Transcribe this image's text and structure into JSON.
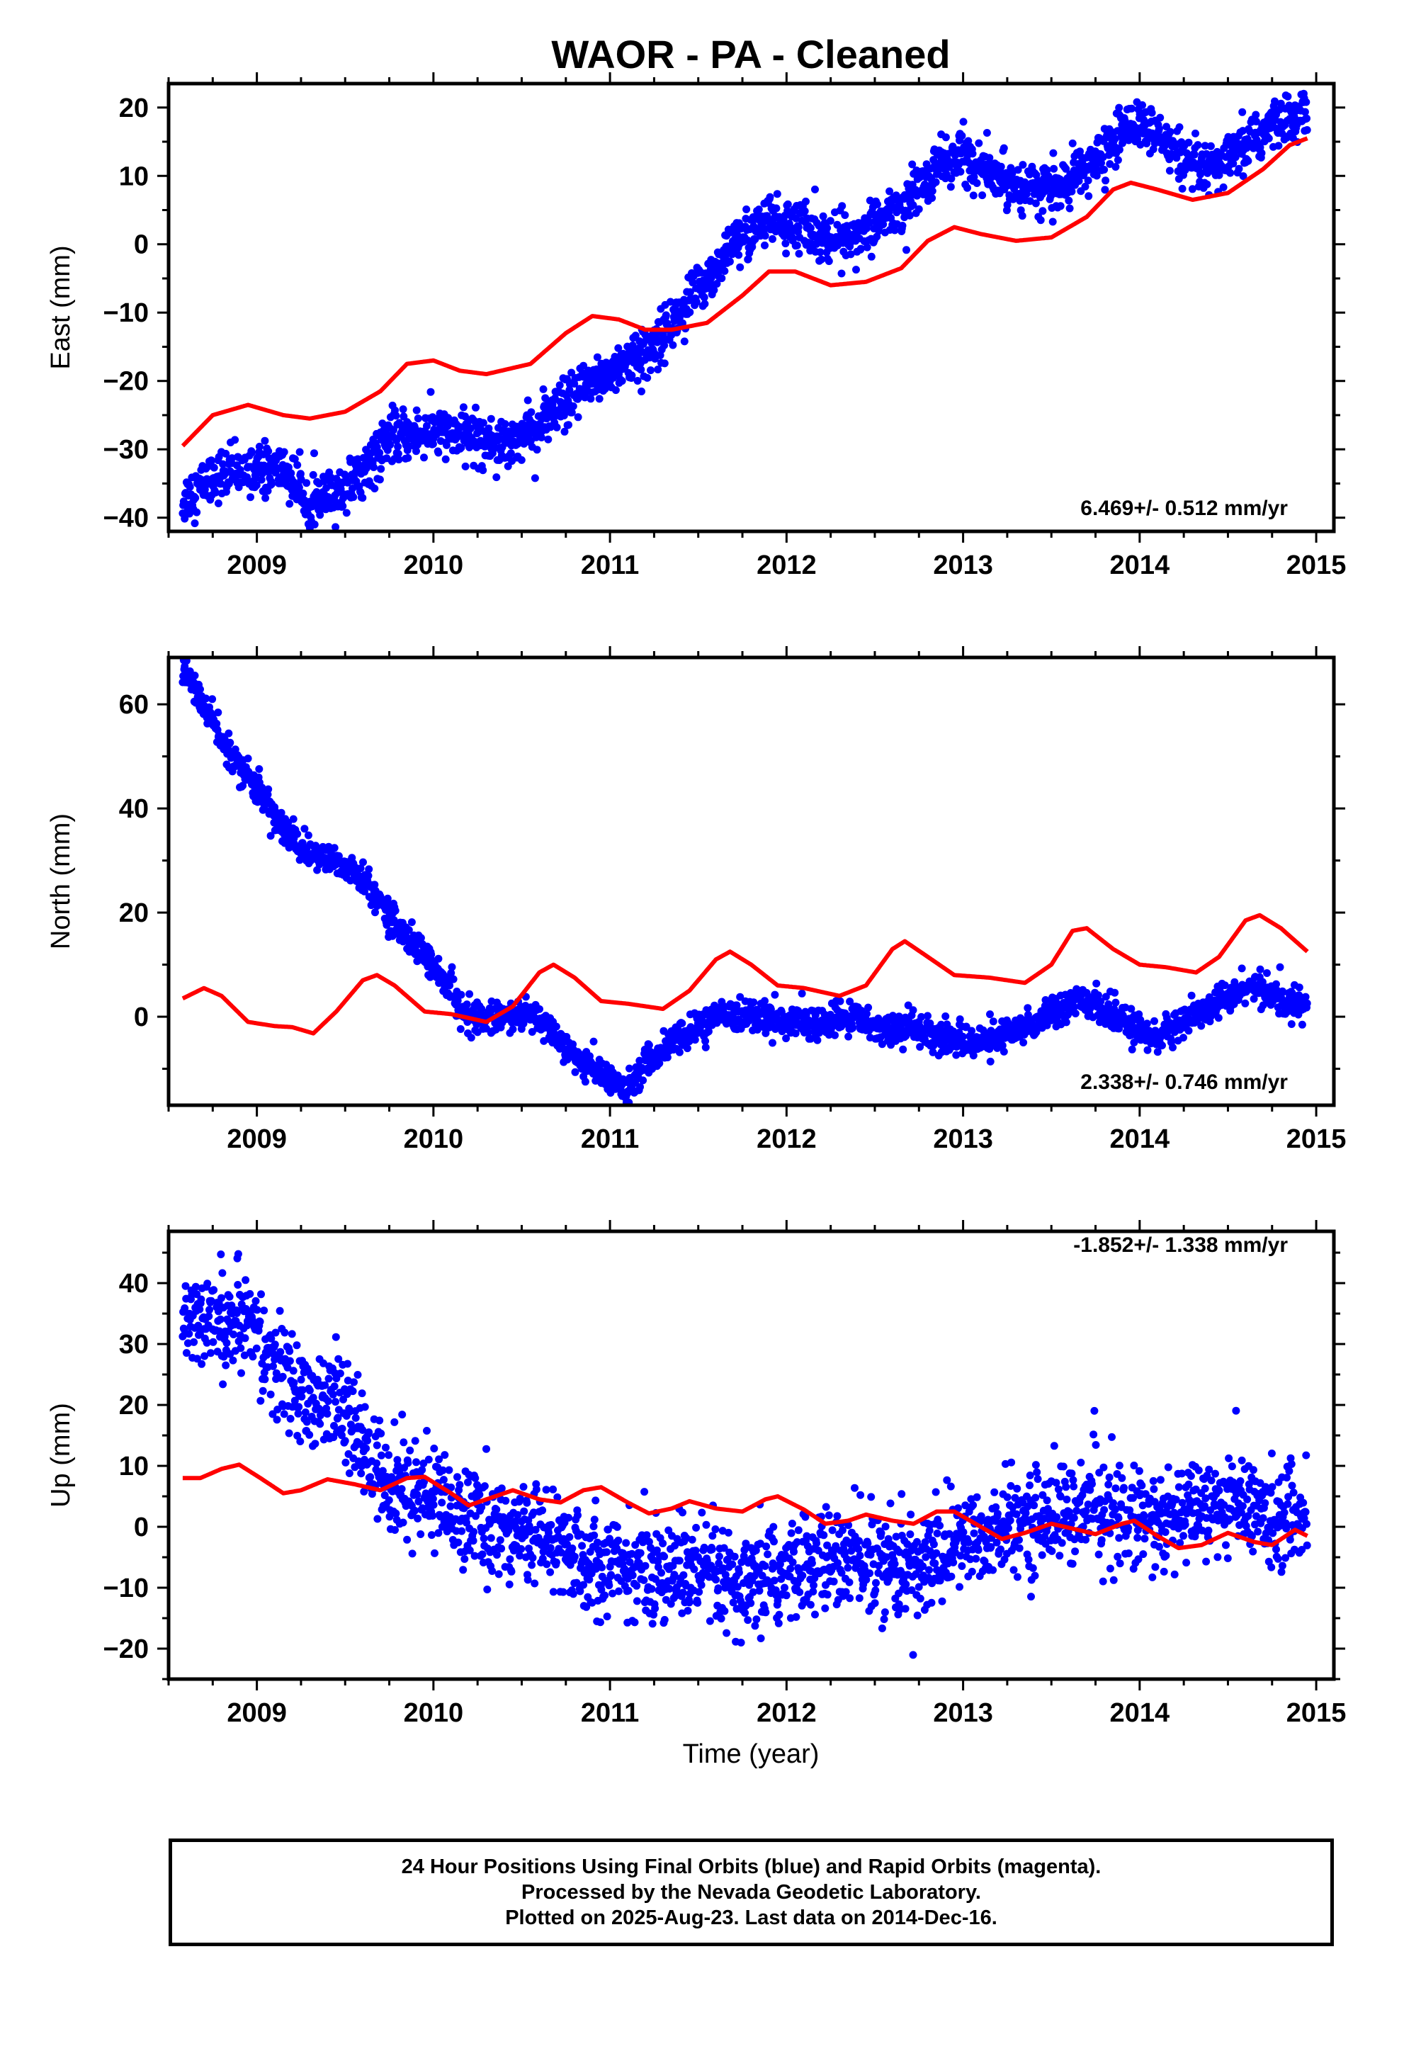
{
  "title": "WAOR  - PA - Cleaned",
  "colors": {
    "observed": "#0000ff",
    "model": "#ff0000",
    "axis": "#000000"
  },
  "xlabel": "Time (year)",
  "footer": {
    "line1": "24 Hour Positions Using Final Orbits (blue) and Rapid Orbits (magenta).",
    "line2": "Processed by the Nevada Geodetic Laboratory.",
    "line3": "Plotted on 2025-Aug-23. Last data on 2014-Dec-16."
  },
  "chart_data": [
    {
      "type": "scatter",
      "ylabel": "East (mm)",
      "rate_label": "6.469+/- 0.512 mm/yr",
      "xlim": [
        2008.5,
        2015.1
      ],
      "ylim": [
        -42,
        23.5
      ],
      "xticks": [
        "2009",
        "2010",
        "2011",
        "2012",
        "2013",
        "2014",
        "2015"
      ],
      "yticks": [
        "20",
        "10",
        "0",
        "-10",
        "-20",
        "-30",
        "-40"
      ],
      "observed_trend": [
        [
          2008.58,
          -37.5
        ],
        [
          2008.75,
          -34
        ],
        [
          2008.95,
          -33
        ],
        [
          2009.15,
          -33
        ],
        [
          2009.3,
          -37.5
        ],
        [
          2009.45,
          -37
        ],
        [
          2009.6,
          -33
        ],
        [
          2009.75,
          -28.5
        ],
        [
          2009.95,
          -27.5
        ],
        [
          2010.15,
          -27.5
        ],
        [
          2010.35,
          -29
        ],
        [
          2010.55,
          -27.5
        ],
        [
          2010.75,
          -23.5
        ],
        [
          2010.9,
          -20
        ],
        [
          2011.05,
          -18
        ],
        [
          2011.2,
          -16
        ],
        [
          2011.4,
          -10
        ],
        [
          2011.55,
          -5
        ],
        [
          2011.7,
          0
        ],
        [
          2011.9,
          3.5
        ],
        [
          2012.1,
          2.5
        ],
        [
          2012.25,
          0.5
        ],
        [
          2012.45,
          2.5
        ],
        [
          2012.65,
          5
        ],
        [
          2012.85,
          11.5
        ],
        [
          2013.0,
          13
        ],
        [
          2013.15,
          10
        ],
        [
          2013.35,
          8.5
        ],
        [
          2013.55,
          8
        ],
        [
          2013.75,
          12
        ],
        [
          2013.95,
          18
        ],
        [
          2014.1,
          16
        ],
        [
          2014.25,
          11.5
        ],
        [
          2014.4,
          10.5
        ],
        [
          2014.6,
          14
        ],
        [
          2014.75,
          17.5
        ],
        [
          2014.95,
          19
        ]
      ],
      "observed_scatter": 1.8,
      "model_curve": [
        [
          2008.58,
          -29.5
        ],
        [
          2008.75,
          -25
        ],
        [
          2008.95,
          -23.5
        ],
        [
          2009.15,
          -25
        ],
        [
          2009.3,
          -25.5
        ],
        [
          2009.5,
          -24.5
        ],
        [
          2009.7,
          -21.5
        ],
        [
          2009.85,
          -17.5
        ],
        [
          2010.0,
          -17
        ],
        [
          2010.15,
          -18.5
        ],
        [
          2010.3,
          -19
        ],
        [
          2010.55,
          -17.5
        ],
        [
          2010.75,
          -13
        ],
        [
          2010.9,
          -10.5
        ],
        [
          2011.05,
          -11
        ],
        [
          2011.2,
          -12.5
        ],
        [
          2011.35,
          -12.5
        ],
        [
          2011.55,
          -11.5
        ],
        [
          2011.75,
          -7.5
        ],
        [
          2011.9,
          -4
        ],
        [
          2012.05,
          -4
        ],
        [
          2012.25,
          -6
        ],
        [
          2012.45,
          -5.5
        ],
        [
          2012.65,
          -3.5
        ],
        [
          2012.8,
          0.5
        ],
        [
          2012.95,
          2.5
        ],
        [
          2013.1,
          1.5
        ],
        [
          2013.3,
          0.5
        ],
        [
          2013.5,
          1
        ],
        [
          2013.7,
          4
        ],
        [
          2013.85,
          8
        ],
        [
          2013.95,
          9
        ],
        [
          2014.1,
          8
        ],
        [
          2014.3,
          6.5
        ],
        [
          2014.5,
          7.5
        ],
        [
          2014.7,
          11
        ],
        [
          2014.85,
          14.5
        ],
        [
          2014.95,
          15.5
        ]
      ]
    },
    {
      "type": "scatter",
      "ylabel": "North (mm)",
      "rate_label": "2.338+/- 0.746 mm/yr",
      "xlim": [
        2008.5,
        2015.1
      ],
      "ylim": [
        -17,
        69
      ],
      "xticks": [
        "2009",
        "2010",
        "2011",
        "2012",
        "2013",
        "2014",
        "2015"
      ],
      "yticks": [
        "60",
        "40",
        "20",
        "0"
      ],
      "observed_trend": [
        [
          2008.58,
          67
        ],
        [
          2008.7,
          60
        ],
        [
          2008.85,
          50
        ],
        [
          2009.0,
          44
        ],
        [
          2009.15,
          36
        ],
        [
          2009.3,
          31
        ],
        [
          2009.45,
          30
        ],
        [
          2009.55,
          28
        ],
        [
          2009.7,
          22
        ],
        [
          2009.85,
          15
        ],
        [
          2010.0,
          10
        ],
        [
          2010.1,
          4
        ],
        [
          2010.2,
          0
        ],
        [
          2010.4,
          0
        ],
        [
          2010.55,
          0.5
        ],
        [
          2010.7,
          -4
        ],
        [
          2010.85,
          -9
        ],
        [
          2011.0,
          -12
        ],
        [
          2011.1,
          -14
        ],
        [
          2011.2,
          -9
        ],
        [
          2011.35,
          -5
        ],
        [
          2011.5,
          -2
        ],
        [
          2011.65,
          0.5
        ],
        [
          2011.85,
          0
        ],
        [
          2012.0,
          -1
        ],
        [
          2012.2,
          -1.5
        ],
        [
          2012.38,
          0
        ],
        [
          2012.5,
          -2
        ],
        [
          2012.7,
          -2
        ],
        [
          2012.9,
          -4
        ],
        [
          2013.1,
          -5
        ],
        [
          2013.3,
          -3
        ],
        [
          2013.5,
          1
        ],
        [
          2013.65,
          4
        ],
        [
          2013.8,
          1
        ],
        [
          2013.95,
          -2
        ],
        [
          2014.1,
          -4
        ],
        [
          2014.3,
          0
        ],
        [
          2014.5,
          4
        ],
        [
          2014.65,
          6
        ],
        [
          2014.8,
          3
        ],
        [
          2014.95,
          2
        ]
      ],
      "observed_scatter": 1.5,
      "model_curve": [
        [
          2008.58,
          3.5
        ],
        [
          2008.7,
          5.5
        ],
        [
          2008.8,
          4
        ],
        [
          2008.95,
          -1
        ],
        [
          2009.1,
          -1.8
        ],
        [
          2009.2,
          -2
        ],
        [
          2009.32,
          -3.2
        ],
        [
          2009.45,
          1
        ],
        [
          2009.6,
          7
        ],
        [
          2009.68,
          8
        ],
        [
          2009.78,
          6
        ],
        [
          2009.95,
          1
        ],
        [
          2010.1,
          0.5
        ],
        [
          2010.3,
          -1
        ],
        [
          2010.45,
          2
        ],
        [
          2010.6,
          8.5
        ],
        [
          2010.68,
          10
        ],
        [
          2010.8,
          7.5
        ],
        [
          2010.95,
          3
        ],
        [
          2011.1,
          2.5
        ],
        [
          2011.3,
          1.5
        ],
        [
          2011.45,
          5
        ],
        [
          2011.6,
          11
        ],
        [
          2011.68,
          12.5
        ],
        [
          2011.8,
          10
        ],
        [
          2011.95,
          6
        ],
        [
          2012.1,
          5.5
        ],
        [
          2012.3,
          4
        ],
        [
          2012.45,
          6
        ],
        [
          2012.6,
          13
        ],
        [
          2012.67,
          14.5
        ],
        [
          2012.8,
          11.5
        ],
        [
          2012.95,
          8
        ],
        [
          2013.15,
          7.5
        ],
        [
          2013.35,
          6.5
        ],
        [
          2013.5,
          10
        ],
        [
          2013.62,
          16.5
        ],
        [
          2013.7,
          17
        ],
        [
          2013.85,
          13
        ],
        [
          2014.0,
          10
        ],
        [
          2014.15,
          9.5
        ],
        [
          2014.32,
          8.5
        ],
        [
          2014.45,
          11.5
        ],
        [
          2014.6,
          18.5
        ],
        [
          2014.68,
          19.5
        ],
        [
          2014.8,
          17
        ],
        [
          2014.95,
          12.5
        ]
      ]
    },
    {
      "type": "scatter",
      "ylabel": "Up (mm)",
      "rate_label": "-1.852+/- 1.338 mm/yr",
      "xlim": [
        2008.5,
        2015.1
      ],
      "ylim": [
        -25,
        48.5
      ],
      "xticks": [
        "2009",
        "2010",
        "2011",
        "2012",
        "2013",
        "2014",
        "2015"
      ],
      "yticks": [
        "40",
        "30",
        "20",
        "10",
        "0",
        "-10",
        "-20"
      ],
      "observed_trend": [
        [
          2008.58,
          36
        ],
        [
          2008.75,
          34
        ],
        [
          2008.95,
          33
        ],
        [
          2009.15,
          25
        ],
        [
          2009.3,
          20
        ],
        [
          2009.45,
          21
        ],
        [
          2009.6,
          13
        ],
        [
          2009.75,
          7
        ],
        [
          2009.95,
          6
        ],
        [
          2010.15,
          2
        ],
        [
          2010.35,
          0
        ],
        [
          2010.55,
          -1
        ],
        [
          2010.75,
          -4
        ],
        [
          2010.95,
          -6
        ],
        [
          2011.15,
          -7
        ],
        [
          2011.35,
          -7
        ],
        [
          2011.55,
          -8
        ],
        [
          2011.75,
          -11
        ],
        [
          2011.95,
          -8
        ],
        [
          2012.15,
          -6
        ],
        [
          2012.35,
          -5
        ],
        [
          2012.55,
          -6
        ],
        [
          2012.75,
          -7
        ],
        [
          2012.95,
          -3
        ],
        [
          2013.15,
          -1
        ],
        [
          2013.35,
          1
        ],
        [
          2013.55,
          2
        ],
        [
          2013.75,
          3
        ],
        [
          2013.95,
          2
        ],
        [
          2014.15,
          0
        ],
        [
          2014.35,
          4
        ],
        [
          2014.55,
          4
        ],
        [
          2014.75,
          2
        ],
        [
          2014.95,
          2
        ]
      ],
      "observed_scatter": 4.2,
      "model_curve": [
        [
          2008.58,
          8
        ],
        [
          2008.68,
          8
        ],
        [
          2008.8,
          9.5
        ],
        [
          2008.9,
          10.2
        ],
        [
          2009.02,
          8
        ],
        [
          2009.15,
          5.5
        ],
        [
          2009.25,
          6
        ],
        [
          2009.4,
          7.8
        ],
        [
          2009.55,
          7
        ],
        [
          2009.7,
          6
        ],
        [
          2009.85,
          8
        ],
        [
          2009.95,
          8.2
        ],
        [
          2010.1,
          5.5
        ],
        [
          2010.2,
          3.5
        ],
        [
          2010.3,
          4.5
        ],
        [
          2010.45,
          6
        ],
        [
          2010.6,
          4.5
        ],
        [
          2010.72,
          4
        ],
        [
          2010.85,
          6
        ],
        [
          2010.95,
          6.5
        ],
        [
          2011.1,
          4
        ],
        [
          2011.22,
          2.2
        ],
        [
          2011.35,
          3
        ],
        [
          2011.45,
          4.2
        ],
        [
          2011.6,
          3
        ],
        [
          2011.75,
          2.5
        ],
        [
          2011.88,
          4.5
        ],
        [
          2011.95,
          5
        ],
        [
          2012.1,
          2.8
        ],
        [
          2012.22,
          0.5
        ],
        [
          2012.35,
          1
        ],
        [
          2012.45,
          2
        ],
        [
          2012.6,
          1
        ],
        [
          2012.72,
          0.5
        ],
        [
          2012.85,
          2.5
        ],
        [
          2012.95,
          2.5
        ],
        [
          2013.1,
          0
        ],
        [
          2013.22,
          -2
        ],
        [
          2013.35,
          -1
        ],
        [
          2013.5,
          0.5
        ],
        [
          2013.65,
          -0.5
        ],
        [
          2013.75,
          -1.2
        ],
        [
          2013.9,
          0.5
        ],
        [
          2013.97,
          1
        ],
        [
          2014.1,
          -1.5
        ],
        [
          2014.22,
          -3.5
        ],
        [
          2014.35,
          -3
        ],
        [
          2014.5,
          -1
        ],
        [
          2014.65,
          -2.5
        ],
        [
          2014.75,
          -3
        ],
        [
          2014.88,
          -0.5
        ],
        [
          2014.95,
          -1.5
        ]
      ]
    }
  ]
}
